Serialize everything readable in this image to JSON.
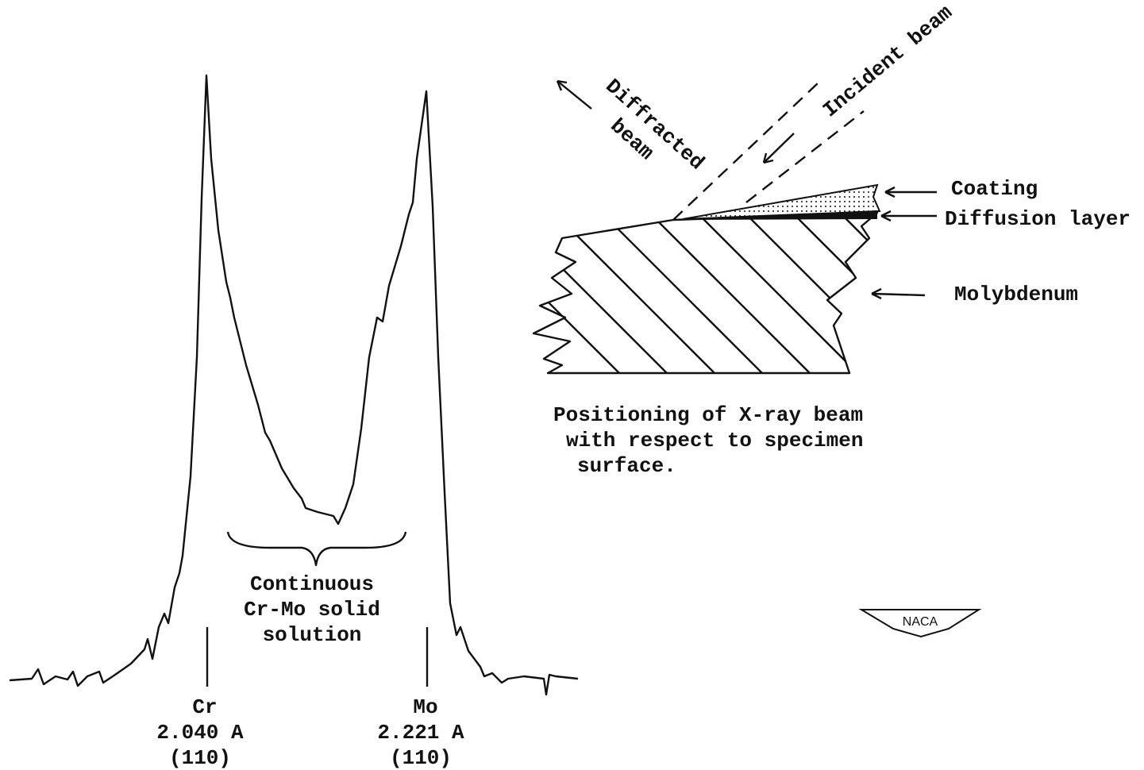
{
  "trace": {
    "peaks": [
      {
        "element": "Cr",
        "d_spacing": "2.040 A",
        "plane": "(110)"
      },
      {
        "element": "Mo",
        "d_spacing": "2.221 A",
        "plane": "(110)"
      }
    ],
    "region_label": [
      "Continuous",
      "Cr-Mo solid",
      "solution"
    ]
  },
  "schematic": {
    "beams": {
      "diffracted": [
        "Diffracted",
        "beam"
      ],
      "incident": "Incident beam"
    },
    "layers": [
      "Coating",
      "Diffusion layer",
      "Molybdenum"
    ],
    "caption": [
      "Positioning of X-ray beam",
      "with respect to specimen",
      "surface."
    ]
  },
  "logo": "NACA"
}
